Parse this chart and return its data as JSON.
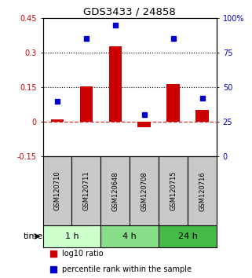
{
  "title": "GDS3433 / 24858",
  "categories": [
    "GSM120710",
    "GSM120711",
    "GSM120648",
    "GSM120708",
    "GSM120715",
    "GSM120716"
  ],
  "log10_ratio": [
    0.01,
    0.152,
    0.328,
    -0.022,
    0.165,
    0.052
  ],
  "percentile": [
    40,
    85,
    95,
    30,
    85,
    42
  ],
  "ylim_left": [
    -0.15,
    0.45
  ],
  "ylim_right": [
    0,
    100
  ],
  "yticks_left": [
    -0.15,
    0.0,
    0.15,
    0.3,
    0.45
  ],
  "yticks_right": [
    0,
    25,
    50,
    75,
    100
  ],
  "ytick_labels_left": [
    "-0.15",
    "0",
    "0.15",
    "0.3",
    "0.45"
  ],
  "ytick_labels_right": [
    "0",
    "25",
    "50",
    "75",
    "100%"
  ],
  "hlines_dotted": [
    0.15,
    0.3
  ],
  "hline_dashed": 0.0,
  "bar_color": "#CC0000",
  "dot_color": "#0000CC",
  "groups": [
    {
      "label": "1 h",
      "indices": [
        0,
        1
      ],
      "color": "#CCFFCC"
    },
    {
      "label": "4 h",
      "indices": [
        2,
        3
      ],
      "color": "#88DD88"
    },
    {
      "label": "24 h",
      "indices": [
        4,
        5
      ],
      "color": "#44BB44"
    }
  ],
  "time_label": "time",
  "legend1": "log10 ratio",
  "legend2": "percentile rank within the sample",
  "bg_color": "#FFFFFF",
  "plot_bg": "#FFFFFF",
  "label_color_left": "#CC0000",
  "label_color_right": "#0000CC",
  "sample_box_color": "#C8C8C8"
}
